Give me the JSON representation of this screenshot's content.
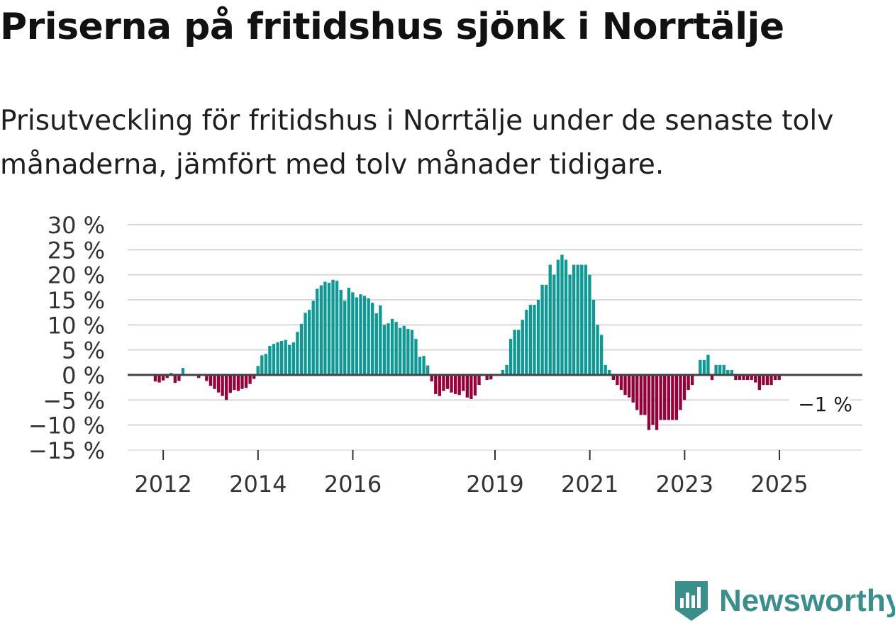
{
  "title": "Priserna på fritidshus sjönk i Norrtälje",
  "subtitle": "Prisutveckling för fritidshus i Norrtälje under de senaste tolv månaderna, jämfört med tolv månader tidigare.",
  "brand": {
    "name": "Newsworthy",
    "icon": "newsworthy-logo-icon",
    "color": "#3a8f8a"
  },
  "colors": {
    "positive": "#0e9a94",
    "negative": "#99003a",
    "gridline": "#d9d9d9",
    "zeroline": "#444444"
  },
  "chart_data": {
    "type": "bar",
    "title": "Priserna på fritidshus sjönk i Norrtälje",
    "ylabel": "",
    "xlabel": "",
    "ylim": [
      -15,
      30
    ],
    "y_ticks": [
      30,
      25,
      20,
      15,
      10,
      5,
      0,
      -5,
      -10,
      -15
    ],
    "y_tick_labels": [
      "30 %",
      "25 %",
      "20 %",
      "15 %",
      "10 %",
      "5 %",
      "0 %",
      "−5 %",
      "−10 %",
      "−15 %"
    ],
    "x_range": [
      2011.25,
      2026.75
    ],
    "x_ticks": [
      2012,
      2014,
      2016,
      2019,
      2021,
      2023,
      2025
    ],
    "x_tick_labels": [
      "2012",
      "2014",
      "2016",
      "2019",
      "2021",
      "2023",
      "2025"
    ],
    "start": 2011.5,
    "step": 0.0833,
    "values": [
      0,
      0,
      0,
      0,
      -1.3,
      -1.5,
      -1.1,
      -0.6,
      0.4,
      -1.6,
      -1.2,
      1.4,
      0,
      0,
      0,
      -0.6,
      0,
      -1.2,
      -2.2,
      -2.8,
      -3.5,
      -4.2,
      -5.0,
      -3.6,
      -3.0,
      -3.2,
      -2.8,
      -2.6,
      -1.8,
      -0.8,
      1.8,
      3.9,
      4.2,
      5.8,
      6.2,
      6.5,
      6.8,
      7.0,
      6.0,
      6.5,
      8.6,
      10.2,
      12.4,
      13.0,
      14.8,
      17.2,
      17.9,
      18.6,
      18.4,
      19.0,
      18.8,
      17.0,
      14.8,
      17.4,
      16.5,
      15.5,
      16.1,
      15.8,
      15.3,
      14.4,
      12.3,
      13.9,
      10.0,
      10.3,
      11.2,
      10.6,
      9.4,
      9.8,
      9.2,
      9.0,
      7.2,
      3.6,
      3.8,
      1.9,
      -1.3,
      -3.8,
      -4.2,
      -3.2,
      -2.8,
      -3.5,
      -3.8,
      -4.0,
      -3.2,
      -4.5,
      -4.8,
      -4.1,
      -2.0,
      0,
      -1.0,
      -0.9,
      0,
      0,
      1.0,
      2.0,
      7.2,
      9.0,
      9.0,
      11.0,
      13.0,
      14.0,
      14.0,
      15.0,
      18.0,
      18.0,
      22.0,
      20.0,
      23.0,
      24.0,
      23.0,
      20.0,
      22.0,
      22.0,
      22.0,
      22.0,
      20.0,
      15.0,
      10.0,
      8.0,
      2.0,
      1.0,
      -1.0,
      -2.0,
      -3.0,
      -4.0,
      -4.5,
      -5.5,
      -7.0,
      -8.0,
      -8.0,
      -11.0,
      -10.0,
      -11.0,
      -9.0,
      -9.0,
      -9.0,
      -9.0,
      -9.0,
      -7.0,
      -5.0,
      -3.0,
      -2.0,
      0,
      3.0,
      3.0,
      4.0,
      -1.0,
      2.0,
      2.0,
      2.0,
      1.0,
      1.0,
      -1.0,
      -1.0,
      -1.0,
      -1.0,
      -1.0,
      -1.5,
      -3.0,
      -2.0,
      -2.0,
      -2.0,
      -1.0,
      -1.0
    ],
    "annotation": {
      "label": "−1 %",
      "value": -1,
      "position": "last-bar-right"
    }
  }
}
